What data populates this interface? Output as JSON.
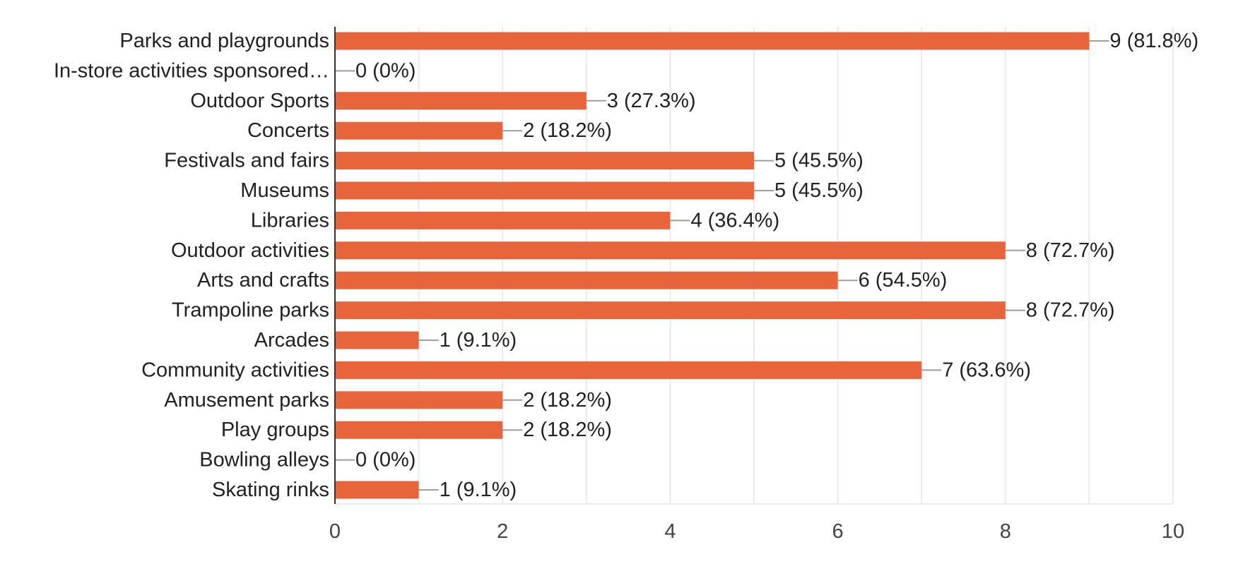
{
  "chart_data": {
    "type": "bar",
    "orientation": "horizontal",
    "title": "",
    "xlabel": "",
    "ylabel": "",
    "xlim": [
      0,
      10
    ],
    "x_ticks": [
      0,
      2,
      4,
      6,
      8,
      10
    ],
    "grid": true,
    "legend": "none",
    "bar_color": "#E8643A",
    "categories": [
      "Parks and playgrounds",
      "In-store activities sponsored…",
      "Outdoor Sports",
      "Concerts",
      "Festivals and fairs",
      "Museums",
      "Libraries",
      "Outdoor activities",
      "Arts and crafts",
      "Trampoline parks",
      "Arcades",
      "Community activities",
      "Amusement parks",
      "Play groups",
      "Bowling alleys",
      "Skating rinks"
    ],
    "values": [
      9,
      0,
      3,
      2,
      5,
      5,
      4,
      8,
      6,
      8,
      1,
      7,
      2,
      2,
      0,
      1
    ],
    "data_labels": [
      "9 (81.8%)",
      "0 (0%)",
      "3 (27.3%)",
      "2 (18.2%)",
      "5 (45.5%)",
      "5 (45.5%)",
      "4 (36.4%)",
      "8 (72.7%)",
      "6 (54.5%)",
      "8 (72.7%)",
      "1 (9.1%)",
      "7 (63.6%)",
      "2 (18.2%)",
      "2 (18.2%)",
      "0 (0%)",
      "1 (9.1%)"
    ]
  }
}
